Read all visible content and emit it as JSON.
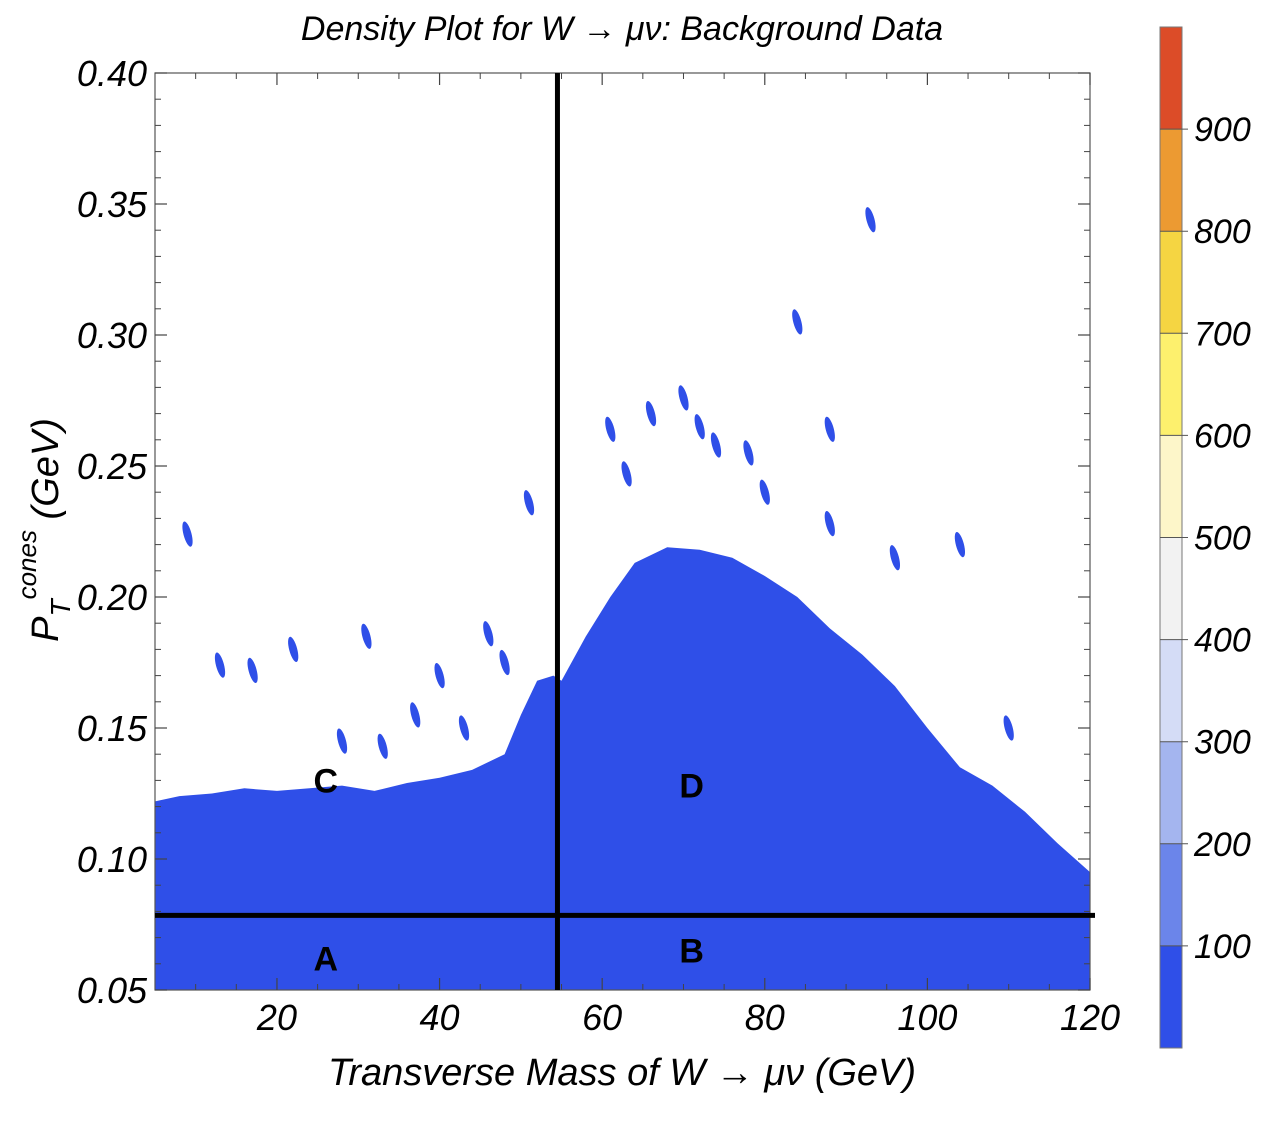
{
  "chart_data": {
    "type": "heatmap",
    "title": "Density Plot for W → μν: Background Data",
    "xlabel": "Transverse Mass of W → μν (GeV)",
    "ylabel": {
      "base": "P",
      "sub": "T",
      "sup": "cones",
      "unit": " (GeV)"
    },
    "xlim": [
      5,
      120
    ],
    "ylim": [
      0.05,
      0.4
    ],
    "x_ticks": [
      20,
      40,
      60,
      80,
      100,
      120
    ],
    "y_ticks": [
      "0.05",
      "0.10",
      "0.15",
      "0.20",
      "0.25",
      "0.30",
      "0.35",
      "0.40"
    ],
    "grid": false,
    "cut_lines": {
      "x": 54.5,
      "y": 0.0785
    },
    "regions": [
      {
        "label": "A",
        "x": 26,
        "y": 0.062
      },
      {
        "label": "B",
        "x": 71,
        "y": 0.065
      },
      {
        "label": "C",
        "x": 26,
        "y": 0.13
      },
      {
        "label": "D",
        "x": 71,
        "y": 0.128
      }
    ],
    "density_fill_color": "#2f4fe8",
    "filled_boundary": [
      [
        5,
        0.122
      ],
      [
        8,
        0.124
      ],
      [
        12,
        0.125
      ],
      [
        16,
        0.127
      ],
      [
        20,
        0.126
      ],
      [
        24,
        0.127
      ],
      [
        28,
        0.128
      ],
      [
        32,
        0.126
      ],
      [
        36,
        0.129
      ],
      [
        40,
        0.131
      ],
      [
        44,
        0.134
      ],
      [
        48,
        0.14
      ],
      [
        50,
        0.155
      ],
      [
        52,
        0.168
      ],
      [
        54,
        0.17
      ],
      [
        55,
        0.168
      ],
      [
        58,
        0.185
      ],
      [
        61,
        0.2
      ],
      [
        64,
        0.213
      ],
      [
        68,
        0.219
      ],
      [
        72,
        0.218
      ],
      [
        76,
        0.215
      ],
      [
        80,
        0.208
      ],
      [
        84,
        0.2
      ],
      [
        88,
        0.188
      ],
      [
        92,
        0.178
      ],
      [
        96,
        0.166
      ],
      [
        100,
        0.15
      ],
      [
        104,
        0.135
      ],
      [
        108,
        0.128
      ],
      [
        112,
        0.118
      ],
      [
        116,
        0.106
      ],
      [
        120,
        0.095
      ]
    ],
    "islands": [
      [
        9,
        0.224
      ],
      [
        13,
        0.174
      ],
      [
        17,
        0.172
      ],
      [
        22,
        0.18
      ],
      [
        28,
        0.145
      ],
      [
        31,
        0.185
      ],
      [
        33,
        0.143
      ],
      [
        37,
        0.155
      ],
      [
        40,
        0.17
      ],
      [
        43,
        0.15
      ],
      [
        46,
        0.186
      ],
      [
        48,
        0.175
      ],
      [
        51,
        0.236
      ],
      [
        61,
        0.264
      ],
      [
        63,
        0.247
      ],
      [
        66,
        0.27
      ],
      [
        70,
        0.276
      ],
      [
        72,
        0.265
      ],
      [
        74,
        0.258
      ],
      [
        78,
        0.255
      ],
      [
        80,
        0.24
      ],
      [
        84,
        0.305
      ],
      [
        88,
        0.264
      ],
      [
        88,
        0.228
      ],
      [
        93,
        0.344
      ],
      [
        96,
        0.215
      ],
      [
        104,
        0.22
      ],
      [
        110,
        0.15
      ]
    ],
    "colorbar": {
      "levels": [
        0,
        100,
        200,
        300,
        400,
        500,
        600,
        700,
        800,
        900,
        1000
      ],
      "tick_labels": [
        "100",
        "200",
        "300",
        "400",
        "500",
        "600",
        "700",
        "800",
        "900"
      ],
      "colors": [
        "#2f4fe8",
        "#6b85ea",
        "#a4b5ef",
        "#d4dcf6",
        "#f2f2f2",
        "#fdf6c9",
        "#fdf06d",
        "#f5d542",
        "#ec9a32",
        "#dc4c28"
      ]
    }
  }
}
